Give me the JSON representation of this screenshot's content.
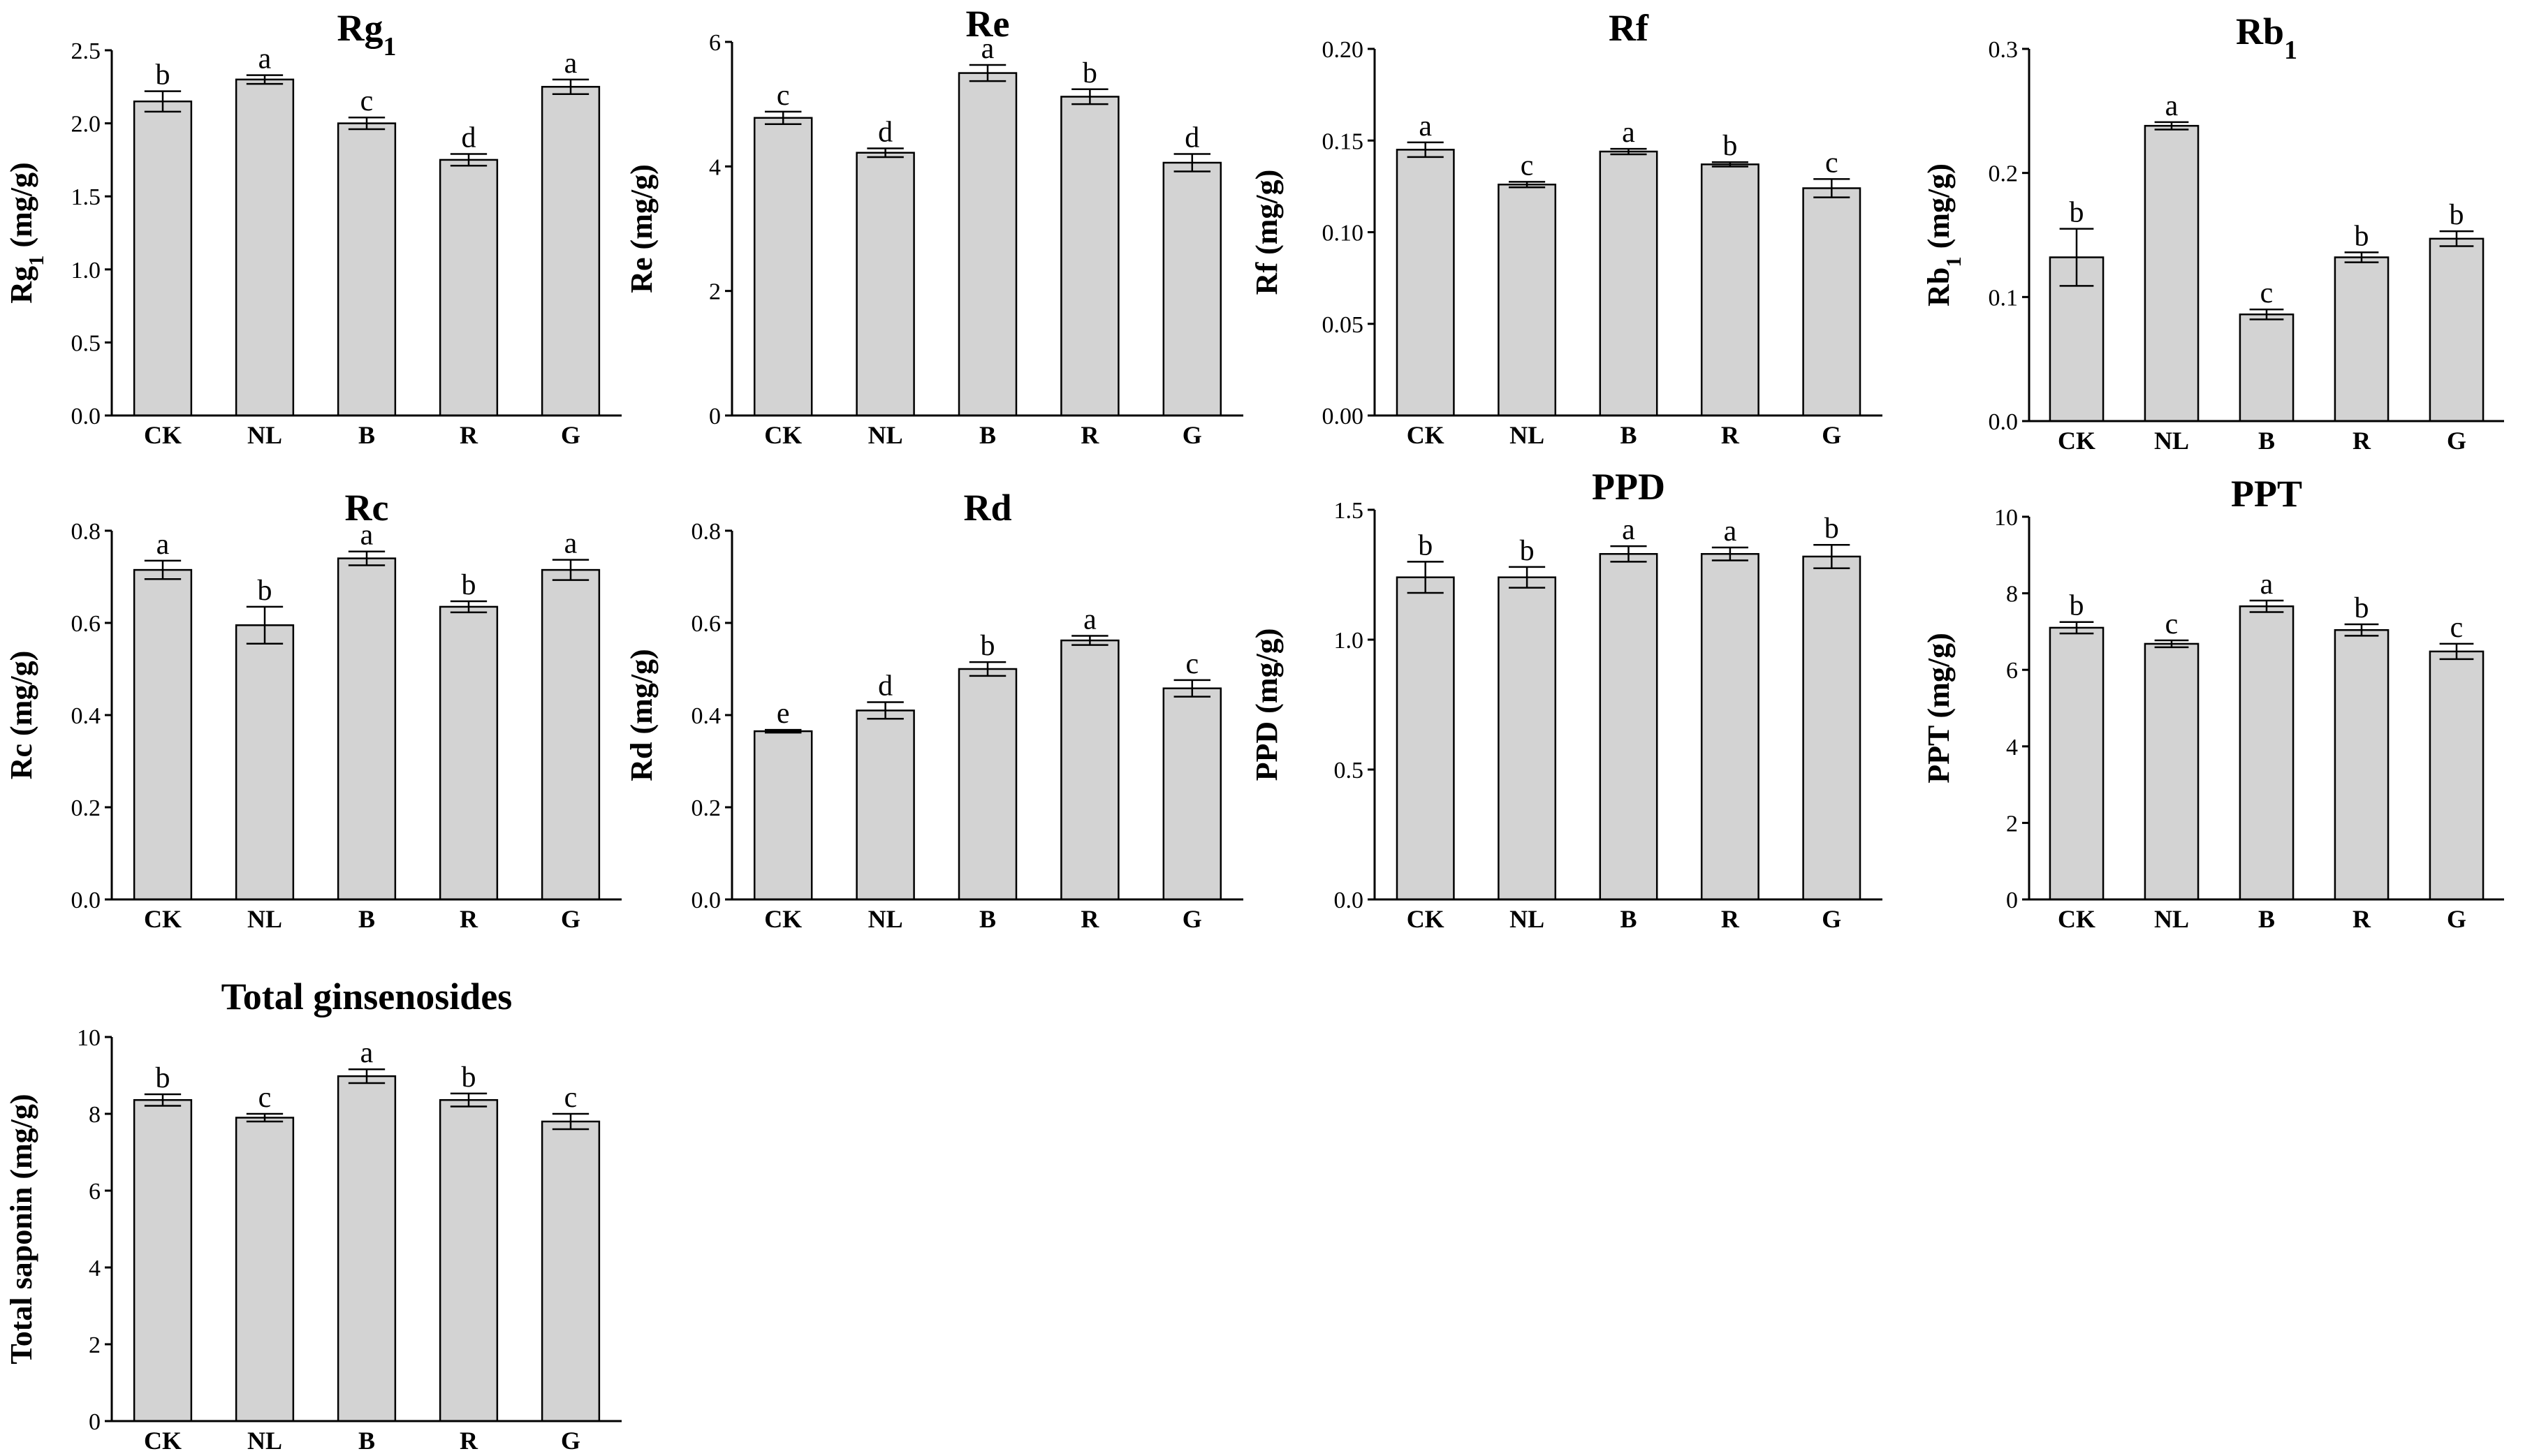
{
  "chart_data": [
    {
      "type": "bar",
      "title": "Rg",
      "title_sub": "1",
      "ylabel": "Rg",
      "ylabel_sub": "1",
      "ylabel_suffix": " (mg/g)",
      "xlabel": "",
      "categories": [
        "CK",
        "NL",
        "B",
        "R",
        "G"
      ],
      "values": [
        2.15,
        2.3,
        2.0,
        1.75,
        2.25
      ],
      "errors": [
        0.07,
        0.03,
        0.04,
        0.04,
        0.05
      ],
      "letters": [
        "b",
        "a",
        "c",
        "d",
        "a"
      ],
      "ylim": [
        0,
        2.5
      ],
      "yticks": [
        0.0,
        0.5,
        1.0,
        1.5,
        2.0,
        2.5
      ],
      "ytick_labels": [
        "0.0",
        "0.5",
        "1.0",
        "1.5",
        "2.0",
        "2.5"
      ],
      "bar_color": "#d3d3d3"
    },
    {
      "type": "bar",
      "title": "Re",
      "title_sub": "",
      "ylabel": "Re",
      "ylabel_sub": "",
      "ylabel_suffix": " (mg/g)",
      "xlabel": "",
      "categories": [
        "CK",
        "NL",
        "B",
        "R",
        "G"
      ],
      "values": [
        4.78,
        4.22,
        5.5,
        5.12,
        4.06
      ],
      "errors": [
        0.1,
        0.07,
        0.13,
        0.12,
        0.14
      ],
      "letters": [
        "c",
        "d",
        "a",
        "b",
        "d"
      ],
      "ylim": [
        0,
        6
      ],
      "yticks": [
        0,
        2,
        4,
        6
      ],
      "ytick_labels": [
        "0",
        "2",
        "4",
        "6"
      ],
      "bar_color": "#d3d3d3"
    },
    {
      "type": "bar",
      "title": "Rf",
      "title_sub": "",
      "ylabel": "Rf",
      "ylabel_sub": "",
      "ylabel_suffix": " (mg/g)",
      "xlabel": "",
      "categories": [
        "CK",
        "NL",
        "B",
        "R",
        "G"
      ],
      "values": [
        0.145,
        0.126,
        0.144,
        0.137,
        0.124
      ],
      "errors": [
        0.004,
        0.0015,
        0.0015,
        0.0012,
        0.005
      ],
      "letters": [
        "a",
        "c",
        "a",
        "b",
        "c"
      ],
      "ylim": [
        0,
        0.2
      ],
      "yticks": [
        0.0,
        0.05,
        0.1,
        0.15,
        0.2
      ],
      "ytick_labels": [
        "0.00",
        "0.05",
        "0.10",
        "0.15",
        "0.20"
      ],
      "bar_color": "#d3d3d3"
    },
    {
      "type": "bar",
      "title": "Rb",
      "title_sub": "1",
      "ylabel": "Rb",
      "ylabel_sub": "1",
      "ylabel_suffix": " (mg/g)",
      "xlabel": "",
      "categories": [
        "CK",
        "NL",
        "B",
        "R",
        "G"
      ],
      "values": [
        0.132,
        0.238,
        0.086,
        0.132,
        0.147
      ],
      "errors": [
        0.023,
        0.003,
        0.004,
        0.004,
        0.006
      ],
      "letters": [
        "b",
        "a",
        "c",
        "b",
        "b"
      ],
      "ylim": [
        0,
        0.3
      ],
      "yticks": [
        0.0,
        0.1,
        0.2,
        0.3
      ],
      "ytick_labels": [
        "0.0",
        "0.1",
        "0.2",
        "0.3"
      ],
      "bar_color": "#d3d3d3"
    },
    {
      "type": "bar",
      "title": "Rc",
      "title_sub": "",
      "ylabel": "Rc",
      "ylabel_sub": "",
      "ylabel_suffix": " (mg/g)",
      "xlabel": "",
      "categories": [
        "CK",
        "NL",
        "B",
        "R",
        "G"
      ],
      "values": [
        0.715,
        0.595,
        0.74,
        0.635,
        0.715
      ],
      "errors": [
        0.02,
        0.04,
        0.015,
        0.012,
        0.022
      ],
      "letters": [
        "a",
        "b",
        "a",
        "b",
        "a"
      ],
      "ylim": [
        0,
        0.8
      ],
      "yticks": [
        0.0,
        0.2,
        0.4,
        0.6,
        0.8
      ],
      "ytick_labels": [
        "0.0",
        "0.2",
        "0.4",
        "0.6",
        "0.8"
      ],
      "bar_color": "#d3d3d3"
    },
    {
      "type": "bar",
      "title": "Rd",
      "title_sub": "",
      "ylabel": "Rd",
      "ylabel_sub": "",
      "ylabel_suffix": " (mg/g)",
      "xlabel": "",
      "categories": [
        "CK",
        "NL",
        "B",
        "R",
        "G"
      ],
      "values": [
        0.365,
        0.41,
        0.5,
        0.562,
        0.458
      ],
      "errors": [
        0.003,
        0.018,
        0.015,
        0.01,
        0.018
      ],
      "letters": [
        "e",
        "d",
        "b",
        "a",
        "c"
      ],
      "ylim": [
        0,
        0.8
      ],
      "yticks": [
        0.0,
        0.2,
        0.4,
        0.6,
        0.8
      ],
      "ytick_labels": [
        "0.0",
        "0.2",
        "0.4",
        "0.6",
        "0.8"
      ],
      "bar_color": "#d3d3d3"
    },
    {
      "type": "bar",
      "title": "PPD",
      "title_sub": "",
      "ylabel": "PPD",
      "ylabel_sub": "",
      "ylabel_suffix": " (mg/g)",
      "xlabel": "",
      "categories": [
        "CK",
        "NL",
        "B",
        "R",
        "G"
      ],
      "values": [
        1.24,
        1.24,
        1.33,
        1.33,
        1.32
      ],
      "errors": [
        0.06,
        0.04,
        0.03,
        0.025,
        0.045
      ],
      "letters": [
        "b",
        "b",
        "a",
        "a",
        "b"
      ],
      "ylim": [
        0,
        1.5
      ],
      "yticks": [
        0.0,
        0.5,
        1.0,
        1.5
      ],
      "ytick_labels": [
        "0.0",
        "0.5",
        "1.0",
        "1.5"
      ],
      "bar_color": "#d3d3d3"
    },
    {
      "type": "bar",
      "title": "PPT",
      "title_sub": "",
      "ylabel": "PPT",
      "ylabel_sub": "",
      "ylabel_suffix": " (mg/g)",
      "xlabel": "",
      "categories": [
        "CK",
        "NL",
        "B",
        "R",
        "G"
      ],
      "values": [
        7.1,
        6.68,
        7.66,
        7.04,
        6.48
      ],
      "errors": [
        0.15,
        0.09,
        0.15,
        0.15,
        0.2
      ],
      "letters": [
        "b",
        "c",
        "a",
        "b",
        "c"
      ],
      "ylim": [
        0,
        10
      ],
      "yticks": [
        0,
        2,
        4,
        6,
        8,
        10
      ],
      "ytick_labels": [
        "0",
        "2",
        "4",
        "6",
        "8",
        "10"
      ],
      "bar_color": "#d3d3d3"
    },
    {
      "type": "bar",
      "title": "Total ginsenosides",
      "title_sub": "",
      "ylabel": "Total saponin",
      "ylabel_sub": "",
      "ylabel_suffix": " (mg/g)",
      "xlabel": "",
      "categories": [
        "CK",
        "NL",
        "B",
        "R",
        "G"
      ],
      "values": [
        8.36,
        7.9,
        8.98,
        8.36,
        7.8
      ],
      "errors": [
        0.15,
        0.1,
        0.18,
        0.17,
        0.2
      ],
      "letters": [
        "b",
        "c",
        "a",
        "b",
        "c"
      ],
      "ylim": [
        0,
        10
      ],
      "yticks": [
        0,
        2,
        4,
        6,
        8,
        10
      ],
      "ytick_labels": [
        "0",
        "2",
        "4",
        "6",
        "8",
        "10"
      ],
      "bar_color": "#d3d3d3"
    }
  ]
}
